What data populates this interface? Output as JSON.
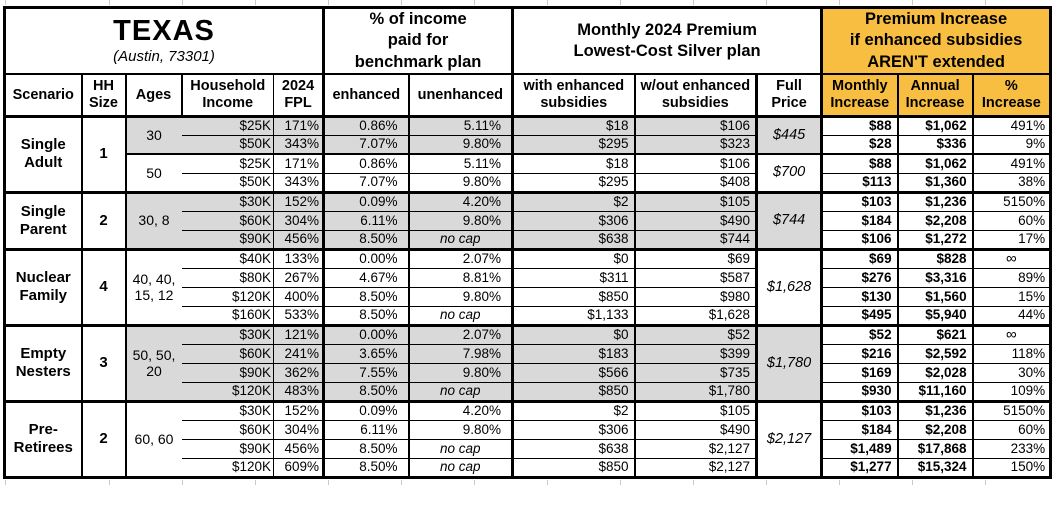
{
  "sheet": {
    "title": "TEXAS",
    "subtitle": "(Austin, 73301)"
  },
  "header_groups": {
    "income_pct": "% of income\npaid for\nbenchmark plan",
    "premium": "Monthly 2024 Premium\nLowest-Cost Silver plan",
    "increase": "Premium Increase\nif enhanced subsidies\nAREN'T extended"
  },
  "columns": [
    "Scenario",
    "HH\nSize",
    "Ages",
    "Household\nIncome",
    "2024\nFPL",
    "enhanced",
    "unenhanced",
    "with enhanced\nsubsidies",
    "w/out enhanced\nsubsidies",
    "Full\nPrice",
    "Monthly\nIncrease",
    "Annual\nIncrease",
    "%\nIncrease"
  ],
  "colors": {
    "accent_orange": "#F8BE41",
    "row_gray": "#D9D9D9"
  },
  "groups": [
    {
      "scenario": "Single\nAdult",
      "hh_size": "1",
      "age_blocks": [
        {
          "ages": "30",
          "shaded": true,
          "full_price": "$445",
          "rows": [
            {
              "income": "$25K",
              "fpl": "171%",
              "enhanced": "0.86%",
              "unenhanced": "5.11%",
              "with_sub": "$18",
              "wout_sub": "$106",
              "monthly_inc": "$88",
              "annual_inc": "$1,062",
              "pct_inc": "491%"
            },
            {
              "income": "$50K",
              "fpl": "343%",
              "enhanced": "7.07%",
              "unenhanced": "9.80%",
              "with_sub": "$295",
              "wout_sub": "$323",
              "monthly_inc": "$28",
              "annual_inc": "$336",
              "pct_inc": "9%"
            }
          ]
        },
        {
          "ages": "50",
          "shaded": false,
          "full_price": "$700",
          "rows": [
            {
              "income": "$25K",
              "fpl": "171%",
              "enhanced": "0.86%",
              "unenhanced": "5.11%",
              "with_sub": "$18",
              "wout_sub": "$106",
              "monthly_inc": "$88",
              "annual_inc": "$1,062",
              "pct_inc": "491%"
            },
            {
              "income": "$50K",
              "fpl": "343%",
              "enhanced": "7.07%",
              "unenhanced": "9.80%",
              "with_sub": "$295",
              "wout_sub": "$408",
              "monthly_inc": "$113",
              "annual_inc": "$1,360",
              "pct_inc": "38%"
            }
          ]
        }
      ]
    },
    {
      "scenario": "Single\nParent",
      "hh_size": "2",
      "age_blocks": [
        {
          "ages": "30, 8",
          "shaded": true,
          "full_price": "$744",
          "rows": [
            {
              "income": "$30K",
              "fpl": "152%",
              "enhanced": "0.09%",
              "unenhanced": "4.20%",
              "with_sub": "$2",
              "wout_sub": "$105",
              "monthly_inc": "$103",
              "annual_inc": "$1,236",
              "pct_inc": "5150%"
            },
            {
              "income": "$60K",
              "fpl": "304%",
              "enhanced": "6.11%",
              "unenhanced": "9.80%",
              "with_sub": "$306",
              "wout_sub": "$490",
              "monthly_inc": "$184",
              "annual_inc": "$2,208",
              "pct_inc": "60%"
            },
            {
              "income": "$90K",
              "fpl": "456%",
              "enhanced": "8.50%",
              "unenhanced": "no cap",
              "with_sub": "$638",
              "wout_sub": "$744",
              "monthly_inc": "$106",
              "annual_inc": "$1,272",
              "pct_inc": "17%"
            }
          ]
        }
      ]
    },
    {
      "scenario": "Nuclear\nFamily",
      "hh_size": "4",
      "age_blocks": [
        {
          "ages": "40, 40,\n15, 12",
          "shaded": false,
          "full_price": "$1,628",
          "rows": [
            {
              "income": "$40K",
              "fpl": "133%",
              "enhanced": "0.00%",
              "unenhanced": "2.07%",
              "with_sub": "$0",
              "wout_sub": "$69",
              "monthly_inc": "$69",
              "annual_inc": "$828",
              "pct_inc": "∞"
            },
            {
              "income": "$80K",
              "fpl": "267%",
              "enhanced": "4.67%",
              "unenhanced": "8.81%",
              "with_sub": "$311",
              "wout_sub": "$587",
              "monthly_inc": "$276",
              "annual_inc": "$3,316",
              "pct_inc": "89%"
            },
            {
              "income": "$120K",
              "fpl": "400%",
              "enhanced": "8.50%",
              "unenhanced": "9.80%",
              "with_sub": "$850",
              "wout_sub": "$980",
              "monthly_inc": "$130",
              "annual_inc": "$1,560",
              "pct_inc": "15%"
            },
            {
              "income": "$160K",
              "fpl": "533%",
              "enhanced": "8.50%",
              "unenhanced": "no cap",
              "with_sub": "$1,133",
              "wout_sub": "$1,628",
              "monthly_inc": "$495",
              "annual_inc": "$5,940",
              "pct_inc": "44%"
            }
          ]
        }
      ]
    },
    {
      "scenario": "Empty\nNesters",
      "hh_size": "3",
      "age_blocks": [
        {
          "ages": "50, 50,\n20",
          "shaded": true,
          "full_price": "$1,780",
          "rows": [
            {
              "income": "$30K",
              "fpl": "121%",
              "enhanced": "0.00%",
              "unenhanced": "2.07%",
              "with_sub": "$0",
              "wout_sub": "$52",
              "monthly_inc": "$52",
              "annual_inc": "$621",
              "pct_inc": "∞"
            },
            {
              "income": "$60K",
              "fpl": "241%",
              "enhanced": "3.65%",
              "unenhanced": "7.98%",
              "with_sub": "$183",
              "wout_sub": "$399",
              "monthly_inc": "$216",
              "annual_inc": "$2,592",
              "pct_inc": "118%"
            },
            {
              "income": "$90K",
              "fpl": "362%",
              "enhanced": "7.55%",
              "unenhanced": "9.80%",
              "with_sub": "$566",
              "wout_sub": "$735",
              "monthly_inc": "$169",
              "annual_inc": "$2,028",
              "pct_inc": "30%"
            },
            {
              "income": "$120K",
              "fpl": "483%",
              "enhanced": "8.50%",
              "unenhanced": "no cap",
              "with_sub": "$850",
              "wout_sub": "$1,780",
              "monthly_inc": "$930",
              "annual_inc": "$11,160",
              "pct_inc": "109%"
            }
          ]
        }
      ]
    },
    {
      "scenario": "Pre-\nRetirees",
      "hh_size": "2",
      "age_blocks": [
        {
          "ages": "60, 60",
          "shaded": false,
          "full_price": "$2,127",
          "rows": [
            {
              "income": "$30K",
              "fpl": "152%",
              "enhanced": "0.09%",
              "unenhanced": "4.20%",
              "with_sub": "$2",
              "wout_sub": "$105",
              "monthly_inc": "$103",
              "annual_inc": "$1,236",
              "pct_inc": "5150%"
            },
            {
              "income": "$60K",
              "fpl": "304%",
              "enhanced": "6.11%",
              "unenhanced": "9.80%",
              "with_sub": "$306",
              "wout_sub": "$490",
              "monthly_inc": "$184",
              "annual_inc": "$2,208",
              "pct_inc": "60%"
            },
            {
              "income": "$90K",
              "fpl": "456%",
              "enhanced": "8.50%",
              "unenhanced": "no cap",
              "with_sub": "$638",
              "wout_sub": "$2,127",
              "monthly_inc": "$1,489",
              "annual_inc": "$17,868",
              "pct_inc": "233%"
            },
            {
              "income": "$120K",
              "fpl": "609%",
              "enhanced": "8.50%",
              "unenhanced": "no cap",
              "with_sub": "$850",
              "wout_sub": "$2,127",
              "monthly_inc": "$1,277",
              "annual_inc": "$15,324",
              "pct_inc": "150%"
            }
          ]
        }
      ]
    }
  ]
}
